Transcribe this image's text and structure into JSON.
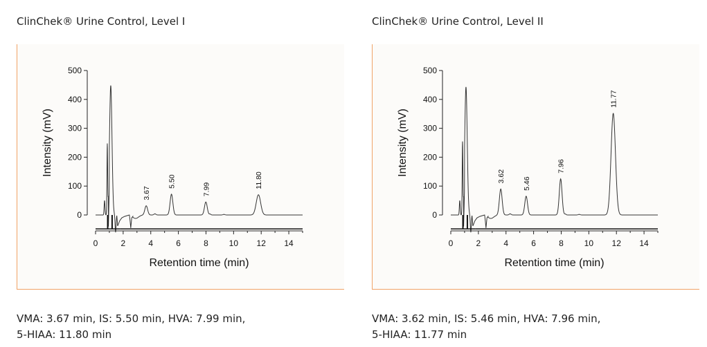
{
  "panels": [
    {
      "title": "ClinChek® Urine Control, Level I",
      "caption_line1": "VMA: 3.67 min, IS: 5.50 min, HVA: 7.99 min,",
      "caption_line2": "5-HIAA: 11.80 min"
    },
    {
      "title": "ClinChek® Urine Control, Level II",
      "caption_line1": "VMA: 3.62 min, IS: 5.46 min, HVA: 7.96 min,",
      "caption_line2": "5-HIAA: 11.77 min"
    }
  ],
  "colors": {
    "frame_border": "#f0a266",
    "trace": "#333333",
    "background": "#fcfbf9"
  },
  "chart_data": [
    {
      "type": "line",
      "xlabel": "Retention time (min)",
      "ylabel": "Intensity (mV)",
      "xlim": [
        0,
        15
      ],
      "ylim": [
        -50,
        500
      ],
      "xticks": [
        0,
        2,
        4,
        6,
        8,
        10,
        12,
        14
      ],
      "yticks": [
        0,
        100,
        200,
        300,
        400,
        500
      ],
      "grid": false,
      "peaks": [
        {
          "label": "3.67",
          "x": 3.67,
          "y": 32
        },
        {
          "label": "5.50",
          "x": 5.5,
          "y": 72
        },
        {
          "label": "7.99",
          "x": 7.99,
          "y": 45
        },
        {
          "label": "11.80",
          "x": 11.8,
          "y": 70
        }
      ],
      "front_peaks": [
        {
          "x": 0.65,
          "y": 50
        },
        {
          "x": 0.85,
          "y": 238
        },
        {
          "x": 1.1,
          "y": 448
        }
      ]
    },
    {
      "type": "line",
      "xlabel": "Retention time (min)",
      "ylabel": "Intensity (mV)",
      "xlim": [
        0,
        15
      ],
      "ylim": [
        -50,
        500
      ],
      "xticks": [
        0,
        2,
        4,
        6,
        8,
        10,
        12,
        14
      ],
      "yticks": [
        0,
        100,
        200,
        300,
        400,
        500
      ],
      "grid": false,
      "peaks": [
        {
          "label": "3.62",
          "x": 3.62,
          "y": 90
        },
        {
          "label": "5.46",
          "x": 5.46,
          "y": 65
        },
        {
          "label": "7.96",
          "x": 7.96,
          "y": 125
        },
        {
          "label": "11.77",
          "x": 11.77,
          "y": 352
        }
      ],
      "front_peaks": [
        {
          "x": 0.65,
          "y": 50
        },
        {
          "x": 0.85,
          "y": 245
        },
        {
          "x": 1.1,
          "y": 443
        }
      ]
    }
  ]
}
